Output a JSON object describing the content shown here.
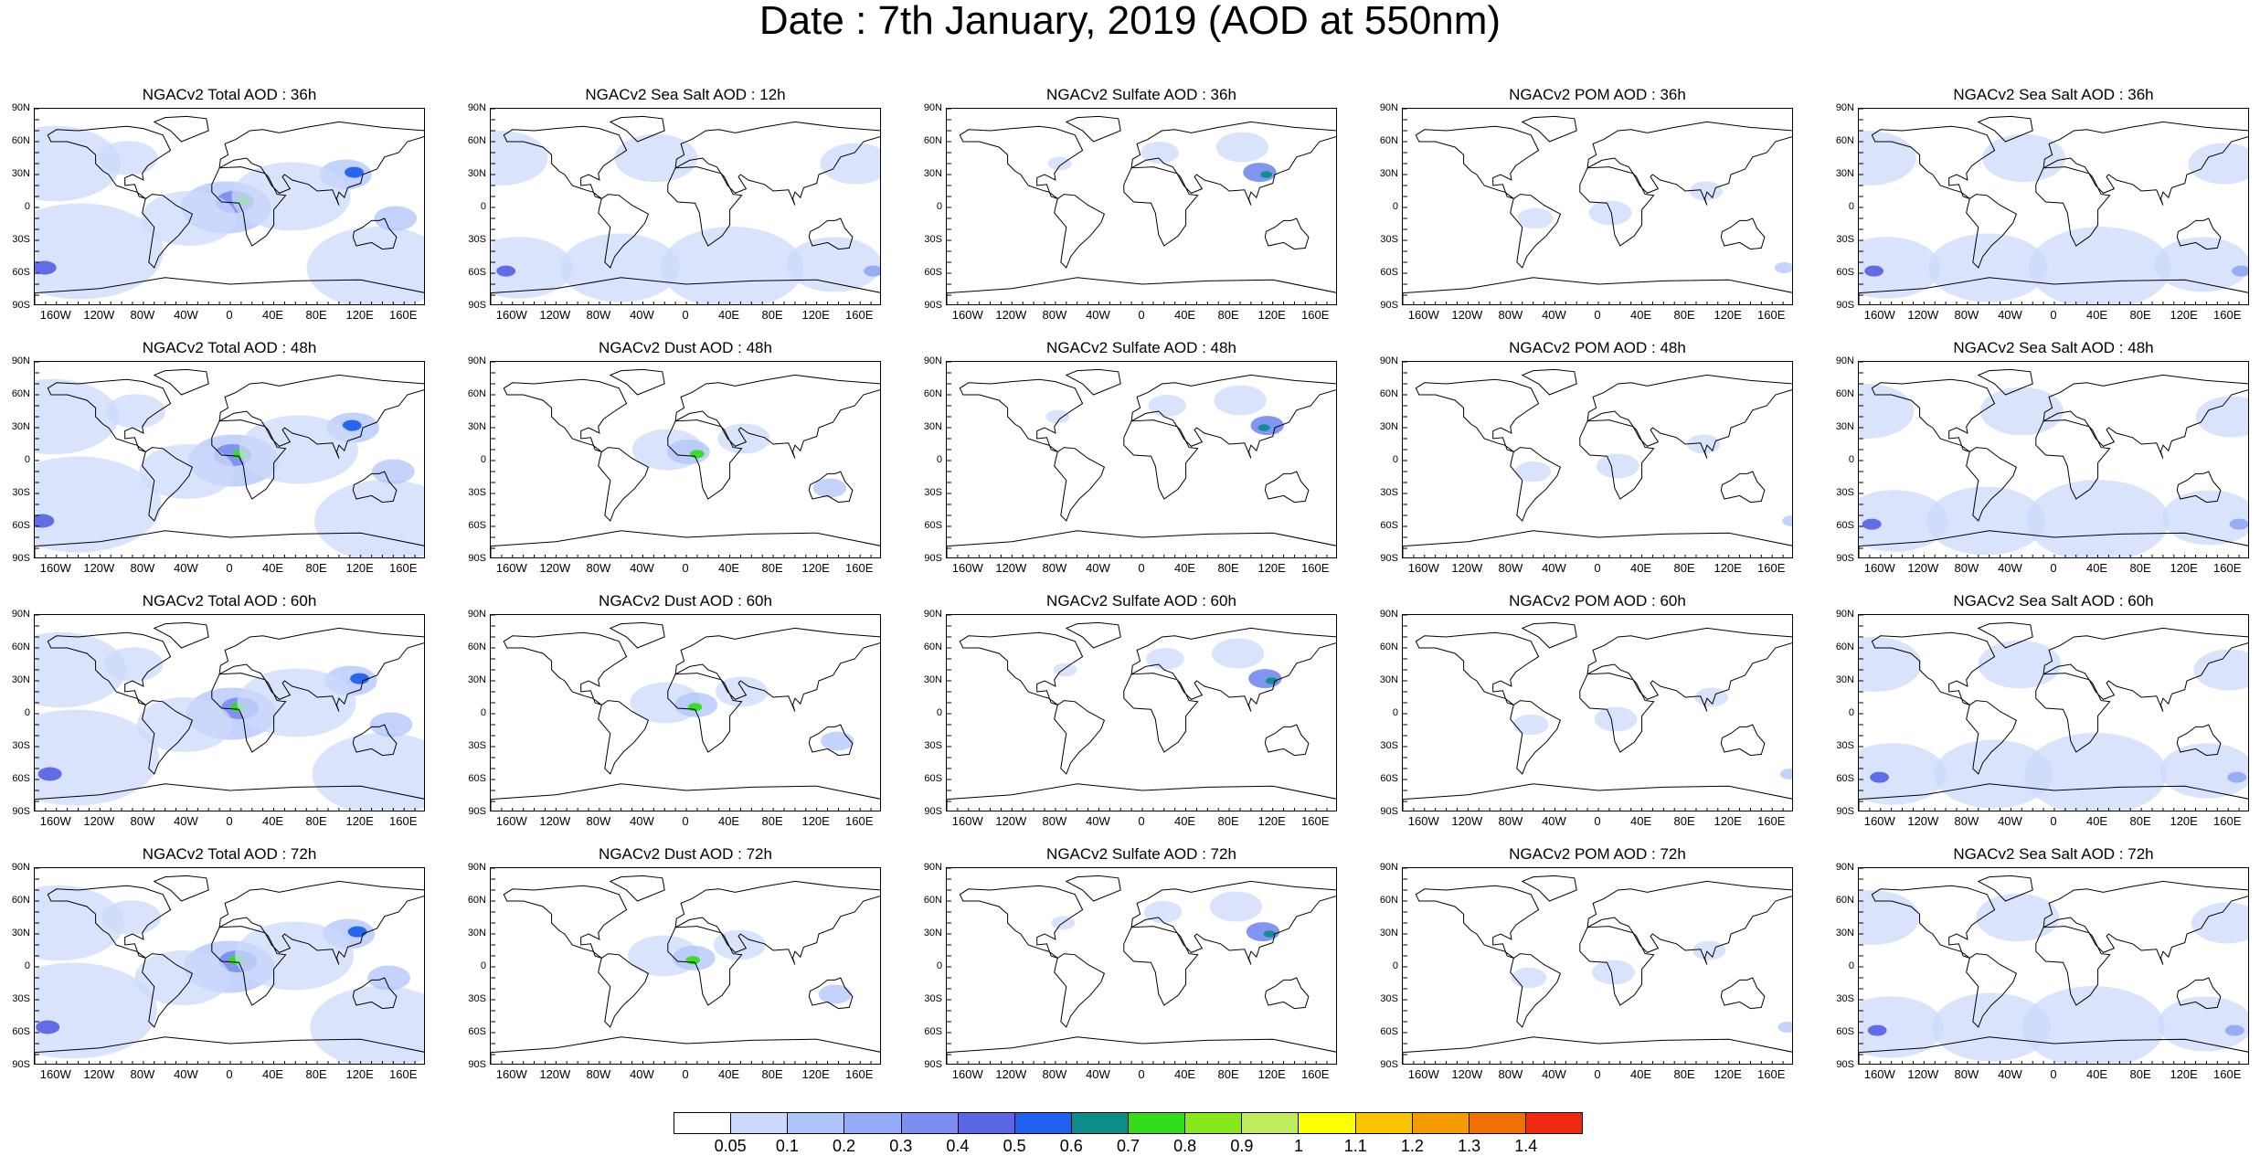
{
  "title": "Date : 7th January, 2019 (AOD at 550nm)",
  "lat_labels": [
    "90N",
    "60N",
    "30N",
    "0",
    "30S",
    "60S",
    "90S"
  ],
  "lon_labels": [
    "160W",
    "120W",
    "80W",
    "40W",
    "0",
    "40E",
    "80E",
    "120E",
    "160E"
  ],
  "rows": [
    [
      "NGACv2 Total AOD : 36h",
      "NGACv2 Sea Salt  AOD : 12h",
      "NGACv2 Sulfate AOD : 36h",
      "NGACv2 POM AOD : 36h",
      "NGACv2 Sea Salt  AOD : 36h"
    ],
    [
      "NGACv2 Total AOD : 48h",
      "NGACv2 Dust AOD : 48h",
      "NGACv2 Sulfate AOD : 48h",
      "NGACv2 POM AOD : 48h",
      "NGACv2 Sea Salt  AOD : 48h"
    ],
    [
      "NGACv2 Total AOD : 60h",
      "NGACv2 Dust AOD : 60h",
      "NGACv2 Sulfate AOD : 60h",
      "NGACv2 POM AOD : 60h",
      "NGACv2 Sea Salt  AOD : 60h"
    ],
    [
      "NGACv2 Total AOD : 72h",
      "NGACv2 Dust AOD : 72h",
      "NGACv2 Sulfate AOD : 72h",
      "NGACv2 POM AOD : 72h",
      "NGACv2 Sea Salt  AOD : 72h"
    ]
  ],
  "colorbar": {
    "labels": [
      "0.05",
      "0.1",
      "0.2",
      "0.3",
      "0.4",
      "0.5",
      "0.6",
      "0.7",
      "0.8",
      "0.9",
      "1",
      "1.1",
      "1.2",
      "1.3",
      "1.4"
    ],
    "colors": [
      "#ffffff",
      "#cdd9fb",
      "#afc4fb",
      "#94abf5",
      "#7b8ff0",
      "#5b65e6",
      "#1f60ee",
      "#0d8c8c",
      "#33dd1c",
      "#88e81a",
      "#c1ec5d",
      "#ffff00",
      "#f9c400",
      "#f59b00",
      "#f07000",
      "#ef2a12"
    ]
  }
}
